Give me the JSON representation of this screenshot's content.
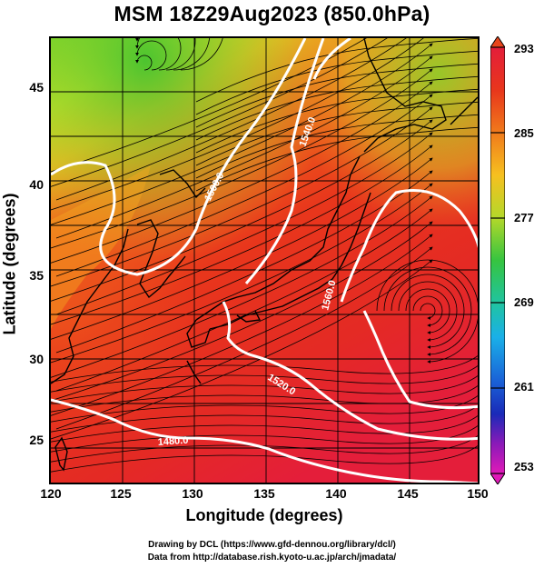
{
  "title": "MSM 18Z29Aug2023 (850.0hPa)",
  "xaxis": {
    "label": "Longitude (degrees)",
    "ticks": [
      "120",
      "125",
      "130",
      "135",
      "140",
      "145",
      "150"
    ],
    "range": [
      120,
      150
    ]
  },
  "yaxis": {
    "label": "Latitude  (degrees)",
    "ticks": [
      "25",
      "30",
      "35",
      "40",
      "45"
    ],
    "range": [
      22.4,
      47.6
    ]
  },
  "colorbar": {
    "ticks": [
      "293",
      "285",
      "277",
      "269",
      "261",
      "253"
    ],
    "range": [
      253,
      293
    ]
  },
  "contours": [
    "1480.0",
    "1520.0",
    "1560.0",
    "1500.0",
    "1540.0"
  ],
  "credits": {
    "line1": "Drawing by DCL (https://www.gfd-dennou.org/library/dcl/)",
    "line2": "Data from http://database.rish.kyoto-u.ac.jp/arch/jmadata/"
  },
  "colors": {
    "warm": "#e8301c",
    "hot": "#e4203a",
    "mild": "#f27a1c",
    "cool": "#c6dc2a",
    "cold": "#5fcc2a",
    "contour": "#ffffff",
    "gridline": "#000000"
  }
}
